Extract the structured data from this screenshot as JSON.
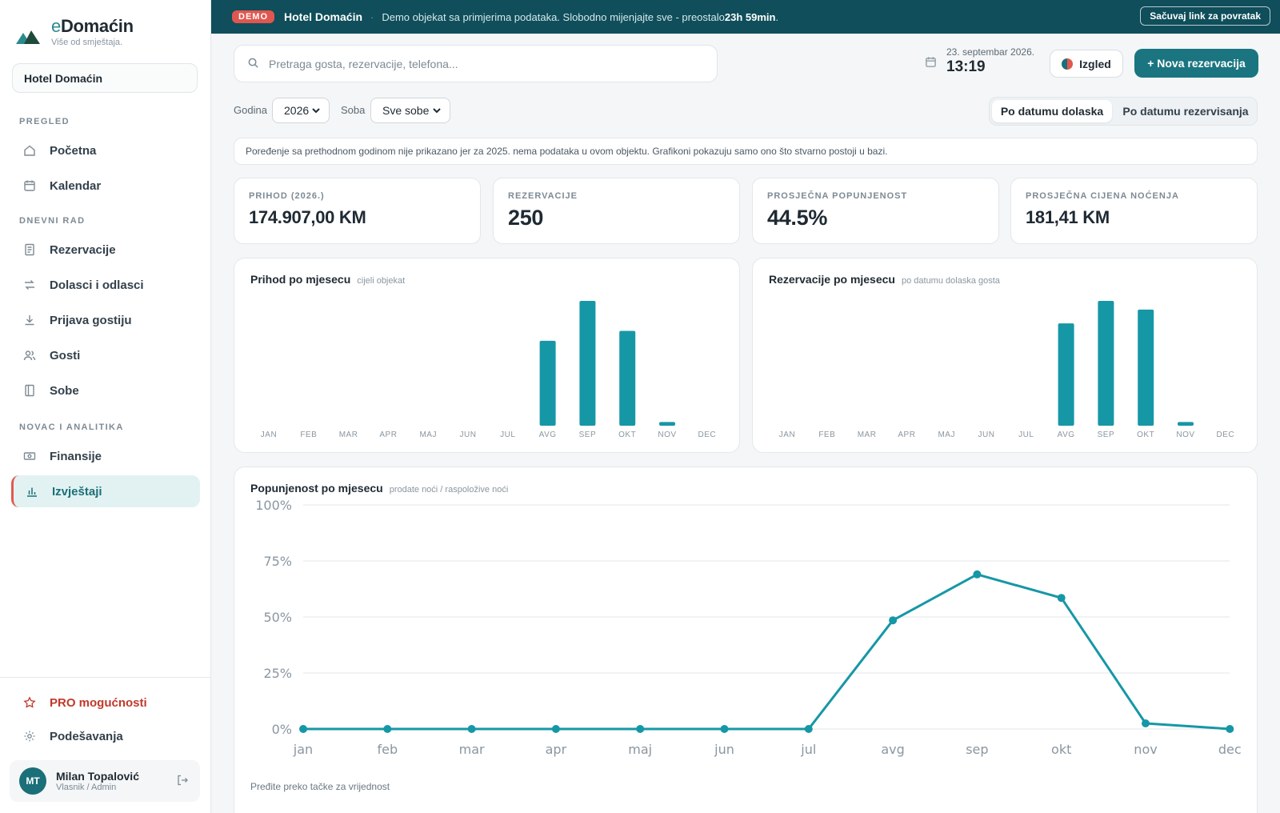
{
  "brand": {
    "prefix": "e",
    "name": "Domaćin",
    "tagline": "Više od smještaja."
  },
  "sidebar": {
    "property": "Hotel Domaćin",
    "sections": {
      "pregled": "PREGLED",
      "dnevni": "DNEVNI RAD",
      "novac": "NOVAC I ANALITIKA"
    },
    "items": {
      "pocetna": {
        "label": "Početna",
        "icon": "home-icon"
      },
      "kalendar": {
        "label": "Kalendar",
        "icon": "calendar-icon"
      },
      "rezervacije": {
        "label": "Rezervacije",
        "icon": "document-icon"
      },
      "dolasci": {
        "label": "Dolasci i odlasci",
        "icon": "arrows-icon"
      },
      "prijava": {
        "label": "Prijava gostiju",
        "icon": "download-icon"
      },
      "gosti": {
        "label": "Gosti",
        "icon": "users-icon"
      },
      "sobe": {
        "label": "Sobe",
        "icon": "door-icon"
      },
      "finansije": {
        "label": "Finansije",
        "icon": "banknote-icon"
      },
      "izvjestaji": {
        "label": "Izvještaji",
        "icon": "bar-chart-icon"
      }
    },
    "pro": "PRO mogućnosti",
    "settings": "Podešavanja",
    "user": {
      "initials": "MT",
      "name": "Milan Topalović",
      "role": "Vlasnik / Admin"
    }
  },
  "banner": {
    "badge": "DEMO",
    "title": "Hotel Domaćin",
    "separator": "·",
    "text": "Demo objekat sa primjerima podataka. Slobodno mijenjajte sve - preostalo",
    "remaining": "23h 59min",
    "end": ".",
    "button": "Sačuvaj link za povratak"
  },
  "topbar": {
    "search_placeholder": "Pretraga gosta, rezervacije, telefona...",
    "date": "23. septembar 2026.",
    "time": "13:19",
    "izgled": "Izgled",
    "new_reservation": "+ Nova rezervacija"
  },
  "filters": {
    "year_label": "Godina",
    "year_value": "2026",
    "room_label": "Soba",
    "room_value": "Sve sobe",
    "toggle_arrival": "Po datumu dolaska",
    "toggle_booking": "Po datumu rezervisanja"
  },
  "notice": "Poređenje sa prethodnom godinom nije prikazano jer za 2025. nema podataka u ovom objektu. Grafikoni pokazuju samo ono što stvarno postoji u bazi.",
  "kpis": [
    {
      "label": "PRIHOD (2026.)",
      "value": "174.907,00 KM"
    },
    {
      "label": "REZERVACIJE",
      "value": "250"
    },
    {
      "label": "PROSJEČNA POPUNJENOST",
      "value": "44.5%"
    },
    {
      "label": "PROSJEČNA CIJENA NOĆENJA",
      "value": "181,41 KM"
    }
  ],
  "colors": {
    "accent": "#1a7580",
    "bar": "#1697a6",
    "line": "#1697a6",
    "danger": "#e0574f"
  },
  "chart_data": [
    {
      "type": "bar",
      "title": "Prihod po mjesecu",
      "subtitle": "cijeli objekat",
      "categories": [
        "JAN",
        "FEB",
        "MAR",
        "APR",
        "MAJ",
        "JUN",
        "JUL",
        "AVG",
        "SEP",
        "OKT",
        "NOV",
        "DEC"
      ],
      "values": [
        0,
        0,
        0,
        0,
        0,
        0,
        0,
        68,
        100,
        76,
        3,
        0
      ],
      "ylim": [
        0,
        100
      ],
      "grid": false
    },
    {
      "type": "bar",
      "title": "Rezervacije po mjesecu",
      "subtitle": "po datumu dolaska gosta",
      "categories": [
        "JAN",
        "FEB",
        "MAR",
        "APR",
        "MAJ",
        "JUN",
        "JUL",
        "AVG",
        "SEP",
        "OKT",
        "NOV",
        "DEC"
      ],
      "values": [
        0,
        0,
        0,
        0,
        0,
        0,
        0,
        82,
        100,
        93,
        3,
        0
      ],
      "ylim": [
        0,
        100
      ],
      "grid": false
    },
    {
      "type": "line",
      "title": "Popunjenost po mjesecu",
      "subtitle": "prodate noći / raspoložive noći",
      "categories": [
        "jan",
        "feb",
        "mar",
        "apr",
        "maj",
        "jun",
        "jul",
        "avg",
        "sep",
        "okt",
        "nov",
        "dec"
      ],
      "values": [
        0,
        0,
        0,
        0,
        0,
        0,
        0,
        48.5,
        69,
        58.5,
        2.5,
        0
      ],
      "yticks": [
        "0%",
        "25%",
        "50%",
        "75%",
        "100%"
      ],
      "ylim": [
        0,
        100
      ],
      "grid": true,
      "hint": "Pređite preko tačke za vrijednost"
    }
  ]
}
